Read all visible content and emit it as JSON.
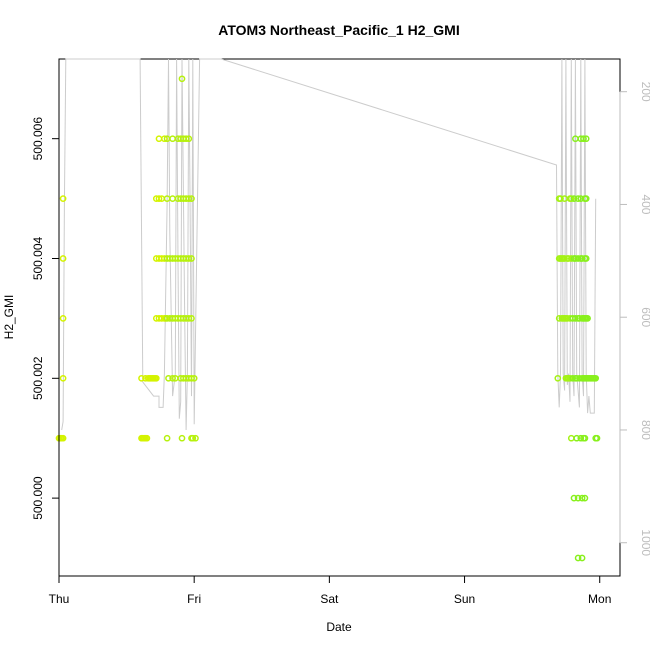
{
  "chart_data": {
    "type": "scatter",
    "title": "ATOM3 Northeast_Pacific_1 H2_GMI",
    "xlabel": "Date",
    "ylabel": "H2_GMI",
    "xlim": [
      0,
      4.15
    ],
    "x_ticks": [
      {
        "value": 0,
        "label": "Thu"
      },
      {
        "value": 1,
        "label": "Fri"
      },
      {
        "value": 2,
        "label": "Sat"
      },
      {
        "value": 3,
        "label": "Sun"
      },
      {
        "value": 4,
        "label": "Mon"
      }
    ],
    "ylim": [
      499.9987,
      500.00733
    ],
    "y_ticks": [
      {
        "value": 500.0,
        "label": "500.000"
      },
      {
        "value": 500.002,
        "label": "500.002"
      },
      {
        "value": 500.004,
        "label": "500.004"
      },
      {
        "value": 500.006,
        "label": "500.006"
      }
    ],
    "y2_axis": {
      "color": "#bdbdbd",
      "reversed": true,
      "ylim": [
        1059,
        142
      ],
      "ticks": [
        {
          "value": 200,
          "label": "200"
        },
        {
          "value": 400,
          "label": "400"
        },
        {
          "value": 600,
          "label": "600"
        },
        {
          "value": 800,
          "label": "800"
        },
        {
          "value": 1000,
          "label": "1000"
        }
      ]
    },
    "grid": false,
    "series": [
      {
        "type": "points",
        "color": "#d4f300",
        "points": [
          [
            0.0,
            500.001
          ],
          [
            0.01,
            500.001
          ],
          [
            0.02,
            500.001
          ],
          [
            0.03,
            500.001
          ],
          [
            0.03,
            500.002
          ],
          [
            0.03,
            500.003
          ],
          [
            0.03,
            500.004
          ],
          [
            0.03,
            500.005
          ],
          [
            0.61,
            500.001
          ],
          [
            0.62,
            500.001
          ],
          [
            0.63,
            500.001
          ],
          [
            0.64,
            500.001
          ],
          [
            0.65,
            500.001
          ],
          [
            0.61,
            500.002
          ],
          [
            0.64,
            500.002
          ],
          [
            0.66,
            500.002
          ],
          [
            0.67,
            500.002
          ],
          [
            0.68,
            500.002
          ],
          [
            0.69,
            500.002
          ],
          [
            0.7,
            500.002
          ],
          [
            0.71,
            500.002
          ],
          [
            0.72,
            500.002
          ],
          [
            0.72,
            500.003
          ],
          [
            0.74,
            500.003
          ],
          [
            0.76,
            500.003
          ],
          [
            0.78,
            500.003
          ],
          [
            0.79,
            500.003
          ],
          [
            0.72,
            500.004
          ],
          [
            0.74,
            500.004
          ],
          [
            0.76,
            500.004
          ],
          [
            0.78,
            500.004
          ],
          [
            0.72,
            500.005
          ],
          [
            0.74,
            500.005
          ],
          [
            0.76,
            500.005
          ],
          [
            0.74,
            500.006
          ],
          [
            0.78,
            500.006
          ]
        ]
      },
      {
        "type": "points",
        "color": "#b6f10e",
        "points": [
          [
            0.8,
            500.001
          ],
          [
            0.91,
            500.001
          ],
          [
            0.98,
            500.001
          ],
          [
            0.99,
            500.001
          ],
          [
            1.01,
            500.001
          ],
          [
            0.81,
            500.002
          ],
          [
            0.84,
            500.002
          ],
          [
            0.86,
            500.002
          ],
          [
            0.9,
            500.002
          ],
          [
            0.92,
            500.002
          ],
          [
            0.94,
            500.002
          ],
          [
            0.96,
            500.002
          ],
          [
            0.98,
            500.002
          ],
          [
            1.0,
            500.002
          ],
          [
            0.8,
            500.003
          ],
          [
            0.82,
            500.003
          ],
          [
            0.84,
            500.003
          ],
          [
            0.86,
            500.003
          ],
          [
            0.88,
            500.003
          ],
          [
            0.9,
            500.003
          ],
          [
            0.92,
            500.003
          ],
          [
            0.94,
            500.003
          ],
          [
            0.96,
            500.003
          ],
          [
            0.98,
            500.003
          ],
          [
            0.8,
            500.004
          ],
          [
            0.82,
            500.004
          ],
          [
            0.84,
            500.004
          ],
          [
            0.86,
            500.004
          ],
          [
            0.88,
            500.004
          ],
          [
            0.9,
            500.004
          ],
          [
            0.92,
            500.004
          ],
          [
            0.94,
            500.004
          ],
          [
            0.96,
            500.004
          ],
          [
            0.98,
            500.004
          ],
          [
            0.8,
            500.005
          ],
          [
            0.84,
            500.005
          ],
          [
            0.88,
            500.005
          ],
          [
            0.9,
            500.005
          ],
          [
            0.92,
            500.005
          ],
          [
            0.94,
            500.005
          ],
          [
            0.96,
            500.005
          ],
          [
            0.98,
            500.005
          ],
          [
            0.8,
            500.006
          ],
          [
            0.84,
            500.006
          ],
          [
            0.88,
            500.006
          ],
          [
            0.9,
            500.006
          ],
          [
            0.92,
            500.006
          ],
          [
            0.94,
            500.006
          ],
          [
            0.96,
            500.006
          ],
          [
            0.91,
            500.007
          ]
        ]
      },
      {
        "type": "points",
        "color": "#a4f215",
        "points": [
          [
            3.69,
            500.002
          ],
          [
            3.7,
            500.003
          ],
          [
            3.7,
            500.004
          ],
          [
            3.7,
            500.005
          ],
          [
            3.71,
            500.005
          ],
          [
            3.71,
            500.004
          ],
          [
            3.72,
            500.004
          ],
          [
            3.72,
            500.003
          ],
          [
            3.73,
            500.003
          ],
          [
            3.73,
            500.004
          ],
          [
            3.74,
            500.004
          ],
          [
            3.74,
            500.003
          ],
          [
            3.74,
            500.005
          ],
          [
            3.75,
            500.003
          ],
          [
            3.75,
            500.002
          ],
          [
            3.76,
            500.002
          ],
          [
            3.76,
            500.003
          ],
          [
            3.76,
            500.004
          ],
          [
            3.77,
            500.004
          ],
          [
            3.77,
            500.002
          ],
          [
            3.78,
            500.002
          ],
          [
            3.78,
            500.003
          ],
          [
            3.78,
            500.005
          ],
          [
            3.79,
            500.005
          ],
          [
            3.79,
            500.004
          ],
          [
            3.79,
            500.001
          ]
        ]
      },
      {
        "type": "points",
        "color": "#88f01c",
        "points": [
          [
            3.8,
            500.002
          ],
          [
            3.8,
            500.003
          ],
          [
            3.81,
            500.004
          ],
          [
            3.81,
            500.005
          ],
          [
            3.81,
            500.0
          ],
          [
            3.82,
            500.002
          ],
          [
            3.82,
            500.003
          ],
          [
            3.82,
            500.004
          ],
          [
            3.82,
            500.006
          ],
          [
            3.83,
            500.001
          ],
          [
            3.83,
            500.002
          ],
          [
            3.84,
            500.003
          ],
          [
            3.84,
            500.004
          ],
          [
            3.84,
            500.005
          ],
          [
            3.84,
            500.0
          ],
          [
            3.84,
            499.999
          ],
          [
            3.85,
            500.002
          ],
          [
            3.85,
            500.003
          ],
          [
            3.86,
            500.004
          ],
          [
            3.86,
            500.005
          ],
          [
            3.86,
            500.001
          ],
          [
            3.86,
            500.006
          ],
          [
            3.87,
            500.002
          ],
          [
            3.87,
            500.003
          ],
          [
            3.87,
            500.004
          ],
          [
            3.87,
            500.0
          ],
          [
            3.87,
            499.999
          ],
          [
            3.88,
            500.002
          ],
          [
            3.88,
            500.003
          ],
          [
            3.88,
            500.001
          ],
          [
            3.88,
            500.006
          ],
          [
            3.89,
            500.002
          ],
          [
            3.89,
            500.003
          ],
          [
            3.89,
            500.004
          ],
          [
            3.89,
            500.005
          ],
          [
            3.89,
            500.0
          ],
          [
            3.89,
            500.001
          ],
          [
            3.9,
            500.002
          ],
          [
            3.9,
            500.003
          ],
          [
            3.9,
            500.004
          ],
          [
            3.9,
            500.005
          ],
          [
            3.9,
            500.006
          ],
          [
            3.91,
            500.002
          ],
          [
            3.91,
            500.003
          ],
          [
            3.92,
            500.002
          ],
          [
            3.93,
            500.002
          ],
          [
            3.94,
            500.002
          ],
          [
            3.95,
            500.002
          ],
          [
            3.96,
            500.002
          ],
          [
            3.97,
            500.002
          ],
          [
            3.97,
            500.001
          ],
          [
            3.98,
            500.001
          ]
        ]
      },
      {
        "type": "line",
        "color": "#cccccc",
        "axis": "y2",
        "points": [
          [
            0.02,
            800
          ],
          [
            0.03,
            785
          ],
          [
            0.04,
            400
          ],
          [
            0.05,
            140
          ],
          [
            0.6,
            140
          ],
          [
            0.62,
            715
          ],
          [
            0.7,
            740
          ],
          [
            0.74,
            740
          ],
          [
            0.74,
            760
          ],
          [
            0.77,
            760
          ],
          [
            0.78,
            700
          ],
          [
            0.8,
            400
          ],
          [
            0.81,
            140
          ],
          [
            0.82,
            450
          ],
          [
            0.84,
            740
          ],
          [
            0.86,
            700
          ],
          [
            0.87,
            140
          ],
          [
            0.88,
            500
          ],
          [
            0.89,
            780
          ],
          [
            0.9,
            750
          ],
          [
            0.91,
            140
          ],
          [
            0.93,
            600
          ],
          [
            0.94,
            800
          ],
          [
            0.95,
            700
          ],
          [
            0.96,
            140
          ],
          [
            0.97,
            400
          ],
          [
            0.98,
            740
          ],
          [
            0.99,
            140
          ],
          [
            1.0,
            790
          ],
          [
            1.04,
            140
          ],
          [
            1.2,
            140
          ],
          [
            3.68,
            330
          ],
          [
            3.69,
            700
          ],
          [
            3.7,
            760
          ],
          [
            3.71,
            700
          ],
          [
            3.72,
            140
          ],
          [
            3.73,
            700
          ],
          [
            3.74,
            730
          ],
          [
            3.75,
            140
          ],
          [
            3.76,
            720
          ],
          [
            3.77,
            700
          ],
          [
            3.78,
            750
          ],
          [
            3.79,
            140
          ],
          [
            3.8,
            700
          ],
          [
            3.81,
            740
          ],
          [
            3.82,
            140
          ],
          [
            3.83,
            700
          ],
          [
            3.84,
            730
          ],
          [
            3.85,
            760
          ],
          [
            3.86,
            140
          ],
          [
            3.87,
            700
          ],
          [
            3.88,
            740
          ],
          [
            3.89,
            140
          ],
          [
            3.9,
            700
          ],
          [
            3.91,
            770
          ],
          [
            3.92,
            740
          ],
          [
            3.93,
            770
          ],
          [
            3.96,
            770
          ],
          [
            3.97,
            390
          ]
        ]
      }
    ]
  }
}
